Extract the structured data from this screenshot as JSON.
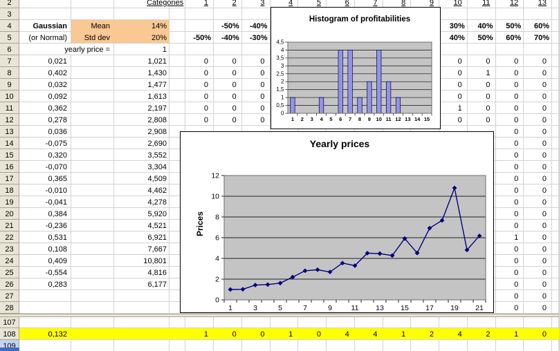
{
  "colors": {
    "gridline": "#D2D2D2",
    "header_bg": "#E9E5D6",
    "selected_header_bg": "#C3D3F0",
    "highlight_orange": "#FAC892",
    "highlight_yellow": "#FFFF00",
    "plot_bg": "#C4C4C4",
    "bar_fill": "#9494E2",
    "line_color": "#000080"
  },
  "sheet": {
    "row_headers": [
      "2",
      "3",
      "4",
      "5",
      "6",
      "7",
      "8",
      "9",
      "10",
      "11",
      "12",
      "13",
      "14",
      "15",
      "16",
      "17",
      "18",
      "19",
      "20",
      "21",
      "22",
      "23",
      "24",
      "25",
      "26",
      "27",
      "28",
      "107",
      "108",
      "109"
    ],
    "selected_row_header": "109",
    "labels": {
      "categories": "Categories",
      "gaussian": "Gaussian",
      "or_normal": "(or Normal)",
      "mean": "Mean",
      "mean_value": "14%",
      "std_dev": "Std dev",
      "std_dev_value": "20%",
      "yearly_price": "yearly price =",
      "yearly_price_value": "1"
    },
    "column_headers": [
      "1",
      "2",
      "3",
      "4",
      "5",
      "6",
      "7",
      "8",
      "9",
      "10",
      "11",
      "12",
      "13"
    ],
    "bounds_row4": {
      "2": "-50%",
      "3": "-40%",
      "10": "30%",
      "11": "40%",
      "12": "50%",
      "13": "60%"
    },
    "bounds_row5": {
      "1": "-50%",
      "2": "-40%",
      "3": "-30%",
      "10": "40%",
      "11": "50%",
      "12": "60%",
      "13": "70%"
    },
    "profit_rows": [
      {
        "row": "7",
        "profit": "0,021",
        "price": "1,021"
      },
      {
        "row": "8",
        "profit": "0,402",
        "price": "1,430"
      },
      {
        "row": "9",
        "profit": "0,032",
        "price": "1,477"
      },
      {
        "row": "10",
        "profit": "0,092",
        "price": "1,613"
      },
      {
        "row": "11",
        "profit": "0,362",
        "price": "2,197"
      },
      {
        "row": "12",
        "profit": "0,278",
        "price": "2,808"
      },
      {
        "row": "13",
        "profit": "0,036",
        "price": "2,908"
      },
      {
        "row": "14",
        "profit": "-0,075",
        "price": "2,690"
      },
      {
        "row": "15",
        "profit": "0,320",
        "price": "3,552"
      },
      {
        "row": "16",
        "profit": "-0,070",
        "price": "3,304"
      },
      {
        "row": "17",
        "profit": "0,365",
        "price": "4,509"
      },
      {
        "row": "18",
        "profit": "-0,010",
        "price": "4,462"
      },
      {
        "row": "19",
        "profit": "-0,041",
        "price": "4,278"
      },
      {
        "row": "20",
        "profit": "0,384",
        "price": "5,920"
      },
      {
        "row": "21",
        "profit": "-0,236",
        "price": "4,521"
      },
      {
        "row": "22",
        "profit": "0,531",
        "price": "6,921"
      },
      {
        "row": "23",
        "profit": "0,108",
        "price": "7,667"
      },
      {
        "row": "24",
        "profit": "0,409",
        "price": "10,801"
      },
      {
        "row": "25",
        "profit": "-0,554",
        "price": "4,816"
      },
      {
        "row": "26",
        "profit": "0,283",
        "price": "6,177"
      }
    ],
    "counts_columns": [
      {
        "col": "1",
        "first_row": 7,
        "values": [
          "0",
          "0",
          "0",
          "0",
          "0",
          "0"
        ]
      },
      {
        "col": "2",
        "first_row": 7,
        "values": [
          "0",
          "0",
          "0",
          "0",
          "0",
          "0"
        ]
      },
      {
        "col": "3",
        "first_row": 7,
        "values": [
          "0",
          "0",
          "0",
          "0",
          "0",
          "0"
        ]
      },
      {
        "col": "10",
        "first_row": 7,
        "values": [
          "0",
          "0",
          "0",
          "0",
          "1",
          "0"
        ]
      },
      {
        "col": "11",
        "first_row": 7,
        "values": [
          "0",
          "1",
          "0",
          "0",
          "0",
          "0"
        ]
      },
      {
        "col": "12",
        "first_row": 7,
        "values": [
          "0",
          "0",
          "0",
          "0",
          "0",
          "0",
          "0",
          "0",
          "0",
          "0",
          "0",
          "0",
          "0",
          "0",
          "0",
          "1",
          "0",
          "0",
          "0",
          "0",
          "0",
          "0"
        ]
      },
      {
        "col": "13",
        "first_row": 7,
        "values": [
          "0",
          "0",
          "0",
          "0",
          "0",
          "0",
          "0",
          "0",
          "0",
          "0",
          "0",
          "0",
          "0",
          "0",
          "0",
          "0",
          "0",
          "0",
          "0",
          "0",
          "0",
          "0"
        ]
      }
    ],
    "summary_row": {
      "row": "108",
      "b_value": "0,132",
      "counts": {
        "1": "1",
        "2": "0",
        "3": "0",
        "4": "1",
        "5": "0",
        "6": "4",
        "7": "4",
        "8": "1",
        "9": "2",
        "10": "4",
        "11": "2",
        "12": "1",
        "13": "0"
      }
    }
  },
  "chart_data": [
    {
      "type": "bar",
      "title": "Histogram of profitabilities",
      "categories": [
        "1",
        "2",
        "3",
        "4",
        "5",
        "6",
        "7",
        "8",
        "9",
        "10",
        "11",
        "12",
        "13",
        "14",
        "15"
      ],
      "values": [
        1,
        0,
        0,
        1,
        0,
        4,
        4,
        1,
        2,
        4,
        2,
        1,
        0,
        0,
        0
      ],
      "xlabel": "",
      "ylabel": "",
      "ylim": [
        0,
        4.5
      ],
      "ytick_step": 0.5,
      "ytick_labels": [
        "0",
        "0,5",
        "1",
        "1,5",
        "2",
        "2,5",
        "3",
        "3,5",
        "4",
        "4,5"
      ],
      "grid": "horizontal",
      "legend": "none",
      "bar_color": "#9494E2",
      "plot_bg": "#C4C4C4"
    },
    {
      "type": "line",
      "title": "Yearly prices",
      "ylabel": "Prices",
      "xlabel": "",
      "x": [
        1,
        2,
        3,
        4,
        5,
        6,
        7,
        8,
        9,
        10,
        11,
        12,
        13,
        14,
        15,
        16,
        17,
        18,
        19,
        20,
        21
      ],
      "values": [
        1,
        1.021,
        1.43,
        1.477,
        1.613,
        2.197,
        2.808,
        2.908,
        2.69,
        3.552,
        3.304,
        4.509,
        4.462,
        4.278,
        5.92,
        4.521,
        6.921,
        7.667,
        10.801,
        4.816,
        6.177
      ],
      "ylim": [
        0,
        12
      ],
      "ytick_step": 2,
      "ytick_labels": [
        "0",
        "2",
        "4",
        "6",
        "8",
        "10",
        "12"
      ],
      "xtick_labels": [
        "1",
        "3",
        "5",
        "7",
        "9",
        "11",
        "13",
        "15",
        "17",
        "19",
        "21"
      ],
      "grid": "horizontal",
      "legend": "none",
      "marker": "diamond",
      "line_color": "#000080",
      "plot_bg": "#C4C4C4"
    }
  ]
}
